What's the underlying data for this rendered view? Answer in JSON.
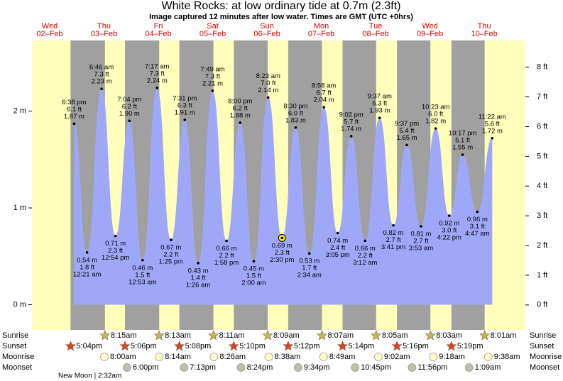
{
  "chart_data": {
    "type": "tide",
    "title": "White Rocks: at low  ordinary tide at 0.7m (2.3ft)",
    "subtitle": "Image captured 12 minutes after low water. Times are GMT (UTC +0hrs)",
    "xlim": [
      0,
      218
    ],
    "ylim": [
      -0.26,
      2.73
    ],
    "yticks": [
      {
        "value": 0,
        "label": "0 m"
      },
      {
        "value": 1,
        "label": "1 m"
      },
      {
        "value": 2,
        "label": "2 m"
      }
    ],
    "y2lim": [
      -0.84,
      8.9
    ],
    "y2ticks": [
      {
        "value": 0,
        "label": "0 ft"
      },
      {
        "value": 1,
        "label": "1 ft"
      },
      {
        "value": 2,
        "label": "2 ft"
      },
      {
        "value": 3,
        "label": "3 ft"
      },
      {
        "value": 4,
        "label": "4 ft"
      },
      {
        "value": 5,
        "label": "5 ft"
      },
      {
        "value": 6,
        "label": "6 ft"
      },
      {
        "value": 7,
        "label": "7 ft"
      },
      {
        "value": 8,
        "label": "8 ft"
      }
    ],
    "days": [
      {
        "weekday": "Wed",
        "date": "02–Feb"
      },
      {
        "weekday": "Thu",
        "date": "03–Feb"
      },
      {
        "weekday": "Fri",
        "date": "04–Feb"
      },
      {
        "weekday": "Sat",
        "date": "05–Feb"
      },
      {
        "weekday": "Sun",
        "date": "06–Feb"
      },
      {
        "weekday": "Mon",
        "date": "07–Feb"
      },
      {
        "weekday": "Tue",
        "date": "08–Feb"
      },
      {
        "weekday": "Wed",
        "date": "09–Feb"
      },
      {
        "weekday": "Thu",
        "date": "10–Feb"
      }
    ],
    "tides": {
      "x": [
        18.63,
        24.35,
        30.77,
        36.9,
        43.07,
        48.88,
        55.28,
        61.42,
        67.52,
        73.43,
        79.82,
        85.97,
        92,
        98,
        104.38,
        110.5,
        116.5,
        122.57,
        128.97,
        135.08,
        141.03,
        147.2,
        153.62,
        159.68,
        165.62,
        171.88,
        178.38,
        184.37,
        190.28,
        196.78,
        203.37
      ],
      "values": [
        1.87,
        0.54,
        2.23,
        0.71,
        1.9,
        0.46,
        2.24,
        0.67,
        1.91,
        0.43,
        2.21,
        0.66,
        1.88,
        0.45,
        2.14,
        0.69,
        1.83,
        0.53,
        2.04,
        0.74,
        1.74,
        0.66,
        1.93,
        0.82,
        1.65,
        0.81,
        1.82,
        0.92,
        1.55,
        0.96,
        1.72
      ],
      "value_labels": [
        "1.87 m",
        "0.54 m",
        "2.23 m",
        "0.71 m",
        "1.90 m",
        "0.46 m",
        "2.24 m",
        "0.67 m",
        "1.91 m",
        "0.43 m",
        "2.21 m",
        "0.66 m",
        "1.88 m",
        "0.45 m",
        "2.14 m",
        "0.69 m",
        "1.83 m",
        "0.53 m",
        "2.04 m",
        "0.74 m",
        "1.74 m",
        "0.66 m",
        "1.93 m",
        "0.82 m",
        "1.65 m",
        "0.81 m",
        "1.82 m",
        "0.92 m",
        "1.55 m",
        "0.96 m",
        "1.72 m"
      ],
      "ft_values": [
        6.1,
        1.8,
        7.3,
        2.3,
        6.2,
        1.5,
        7.3,
        2.2,
        6.3,
        1.4,
        7.3,
        2.2,
        6.2,
        1.5,
        7.0,
        2.3,
        6.0,
        1.7,
        6.7,
        2.4,
        5.7,
        2.2,
        6.3,
        2.7,
        5.4,
        2.7,
        6.0,
        3.0,
        5.1,
        3.1,
        5.6
      ],
      "ft_labels": [
        "6.1 ft",
        "1.8 ft",
        "7.3 ft",
        "2.3 ft",
        "6.2 ft",
        "1.5 ft",
        "7.3 ft",
        "2.2 ft",
        "6.3 ft",
        "1.4 ft",
        "7.3 ft",
        "2.2 ft",
        "6.2 ft",
        "1.5 ft",
        "7.0 ft",
        "2.3 ft",
        "6.0 ft",
        "1.7 ft",
        "6.7 ft",
        "2.4 ft",
        "5.7 ft",
        "2.2 ft",
        "6.3 ft",
        "2.7 ft",
        "5.4 ft",
        "2.7 ft",
        "6.0 ft",
        "3.0 ft",
        "5.1 ft",
        "3.1 ft",
        "5.6 ft"
      ],
      "times": [
        "6:38 pm",
        "12:21 am",
        "6:46 am",
        "12:54 pm",
        "7:04 pm",
        "12:53 am",
        "7:17 am",
        "1:25 pm",
        "7:31 pm",
        "1:26 am",
        "7:49 am",
        "1:58 pm",
        "8:00 pm",
        "2:00 am",
        "8:23 am",
        "2:30 pm",
        "8:30 pm",
        "2:34 am",
        "8:58 am",
        "3:05 pm",
        "9:02 pm",
        "3:12 am",
        "9:37 am",
        "3:41 pm",
        "9:37 pm",
        "3:53 am",
        "10:23 am",
        "4:22 pm",
        "10:17 pm",
        "4:47 am",
        "11:22 am"
      ],
      "color": "#9fa8f8"
    },
    "current_index": 15,
    "day_color": "#ffffbb",
    "night_color": "#a0a0a0",
    "sunrise": {
      "name": "Sunrise",
      "color": "#c8b448",
      "x": [
        32.25,
        56.22,
        80.18,
        104.15,
        128.12,
        152.08,
        176.05,
        200.02
      ],
      "labels": [
        "8:15am",
        "8:13am",
        "8:11am",
        "8:09am",
        "8:07am",
        "8:05am",
        "8:03am",
        "8:01am"
      ]
    },
    "sunset": {
      "name": "Sunset",
      "color": "#e04020",
      "x": [
        17.07,
        41.1,
        65.13,
        89.17,
        113.2,
        137.23,
        161.27,
        185.32
      ],
      "labels": [
        "5:04pm",
        "5:06pm",
        "5:08pm",
        "5:10pm",
        "5:12pm",
        "5:14pm",
        "5:16pm",
        "5:19pm"
      ]
    },
    "moonrise": {
      "name": "Moonrise",
      "color": "#ffffcc",
      "x": [
        32.0,
        56.23,
        80.43,
        104.63,
        128.82,
        153.03,
        177.3,
        201.63
      ],
      "labels": [
        "8:00am",
        "8:14am",
        "8:26am",
        "8:38am",
        "8:49am",
        "9:02am",
        "9:18am",
        "9:38am"
      ]
    },
    "moonset": {
      "name": "Moonset",
      "color": "#c0bcb0",
      "x": [
        42,
        67.22,
        92.4,
        117.57,
        142.75,
        167.93,
        193.15
      ],
      "labels": [
        "6:00pm",
        "7:13pm",
        "8:24pm",
        "9:34pm",
        "10:45pm",
        "11:56pm",
        "1:09am"
      ]
    },
    "moon_phase": "New Moon | 2:32am"
  }
}
